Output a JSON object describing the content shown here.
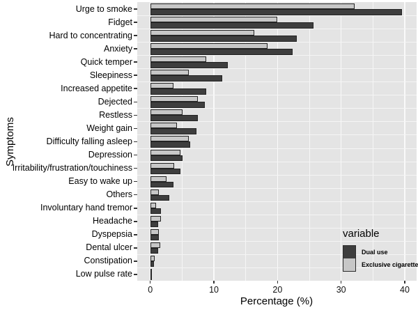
{
  "chart_data": {
    "type": "bar",
    "orientation": "horizontal",
    "xlabel": "Percentage (%)",
    "ylabel": "Symptoms",
    "xlim": [
      0,
      42
    ],
    "x_ticks": [
      0,
      10,
      20,
      30,
      40
    ],
    "x_minor_ticks": [
      5,
      15,
      25,
      35
    ],
    "grid": true,
    "legend_position": "inside-right",
    "categories": [
      "Urge to smoke",
      "Fidget",
      "Hard to concentrating",
      "Anxiety",
      "Quick temper",
      "Sleepiness",
      "Increased appetite",
      "Dejected",
      "Restless",
      "Weight gain",
      "Difficulty falling asleep",
      "Depression",
      "Irritability/frustration/touchiness",
      "Easy to wake up",
      "Others",
      "Involuntary hand tremor",
      "Headache",
      "Dyspepsia",
      "Dental ulcer",
      "Constipation",
      "Low pulse rate"
    ],
    "series": [
      {
        "name": "Dual use",
        "color": "#3e3e3e",
        "values": [
          39.6,
          25.7,
          23.0,
          22.4,
          12.2,
          11.3,
          8.8,
          8.6,
          7.5,
          7.3,
          6.3,
          5.1,
          4.7,
          3.7,
          3.0,
          1.7,
          1.2,
          1.3,
          1.2,
          0.6,
          0.2
        ]
      },
      {
        "name": "Exclusive cigarette",
        "color": "#c7c7c7",
        "values": [
          32.1,
          20.0,
          16.3,
          18.4,
          8.8,
          6.1,
          3.6,
          7.5,
          5.1,
          4.2,
          6.1,
          4.7,
          3.8,
          2.6,
          1.3,
          0.9,
          1.7,
          1.3,
          1.6,
          0.7,
          0.2
        ]
      }
    ]
  },
  "legend": {
    "title": "variable",
    "items": [
      {
        "label": "Dual use",
        "color": "#3e3e3e"
      },
      {
        "label": "Exclusive cigarette",
        "color": "#c7c7c7"
      }
    ]
  },
  "axes": {
    "x_title": "Percentage (%)",
    "y_title": "Symptoms"
  },
  "colors": {
    "panel_bg": "#e4e4e4",
    "bar_border": "#232323",
    "grid_major": "#fafafa",
    "dual_use": "#3e3e3e",
    "exclusive_cigarette": "#c7c7c7"
  }
}
